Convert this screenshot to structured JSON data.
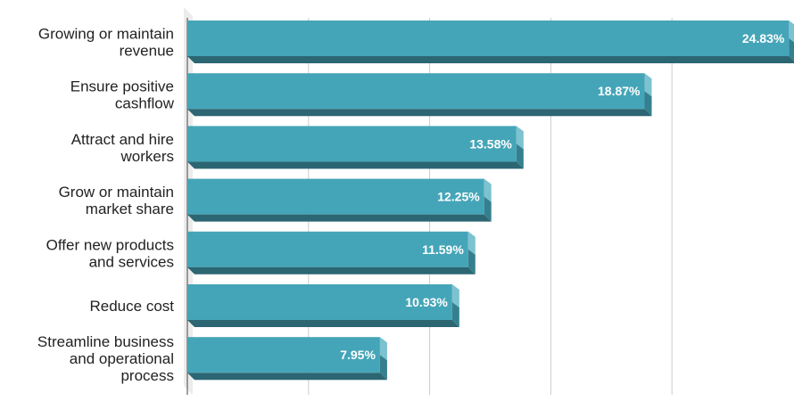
{
  "chart_data": {
    "type": "bar",
    "orientation": "horizontal",
    "categories": [
      [
        "Growing or maintain",
        "revenue"
      ],
      [
        "Ensure positive",
        "cashflow"
      ],
      [
        "Attract and hire",
        "workers"
      ],
      [
        "Grow or maintain",
        "market share"
      ],
      [
        "Offer new products",
        "and services"
      ],
      [
        "Reduce cost"
      ],
      [
        "Streamline business",
        "and operational",
        "process"
      ]
    ],
    "values": [
      24.83,
      18.87,
      13.58,
      12.25,
      11.59,
      10.93,
      7.95
    ],
    "value_labels": [
      "24.83%",
      "18.87%",
      "13.58%",
      "12.25%",
      "11.59%",
      "10.93%",
      "7.95%"
    ],
    "xlim": [
      0,
      25
    ],
    "grid": "vertical",
    "legend": "none",
    "colors": {
      "bar_front": "#45a5b8",
      "bar_bottom": "#2c6673",
      "bar_side": "#7cc2d0",
      "bar_side_shade": "#35808f",
      "grid": "#cccccc",
      "wall": "#ececec"
    }
  }
}
